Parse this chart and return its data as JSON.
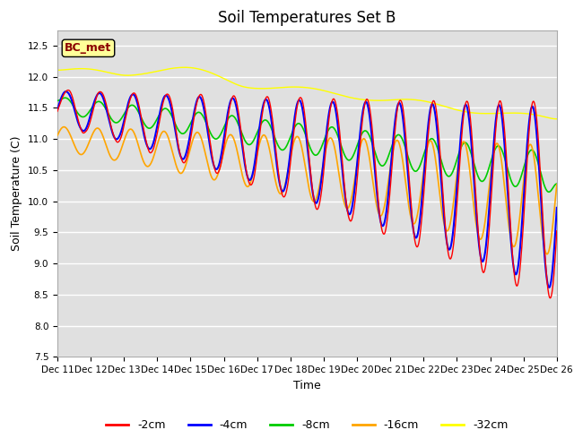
{
  "title": "Soil Temperatures Set B",
  "xlabel": "Time",
  "ylabel": "Soil Temperature (C)",
  "ylim": [
    7.5,
    12.75
  ],
  "x_tick_labels": [
    "Dec 11",
    "Dec 12",
    "Dec 13",
    "Dec 14",
    "Dec 15",
    "Dec 16",
    "Dec 17",
    "Dec 18",
    "Dec 19",
    "Dec 20",
    "Dec 21",
    "Dec 22",
    "Dec 23",
    "Dec 24",
    "Dec 25",
    "Dec 26"
  ],
  "annotation_text": "BC_met",
  "annotation_color": "#8B0000",
  "annotation_bg": "#FFFF99",
  "line_colors": {
    "-2cm": "#FF0000",
    "-4cm": "#0000FF",
    "-8cm": "#00CC00",
    "-16cm": "#FFA500",
    "-32cm": "#FFFF00"
  },
  "bg_color": "#E0E0E0",
  "grid_color": "white",
  "title_fontsize": 12,
  "legend_fontsize": 9,
  "axis_label_fontsize": 9,
  "tick_fontsize": 7.5
}
